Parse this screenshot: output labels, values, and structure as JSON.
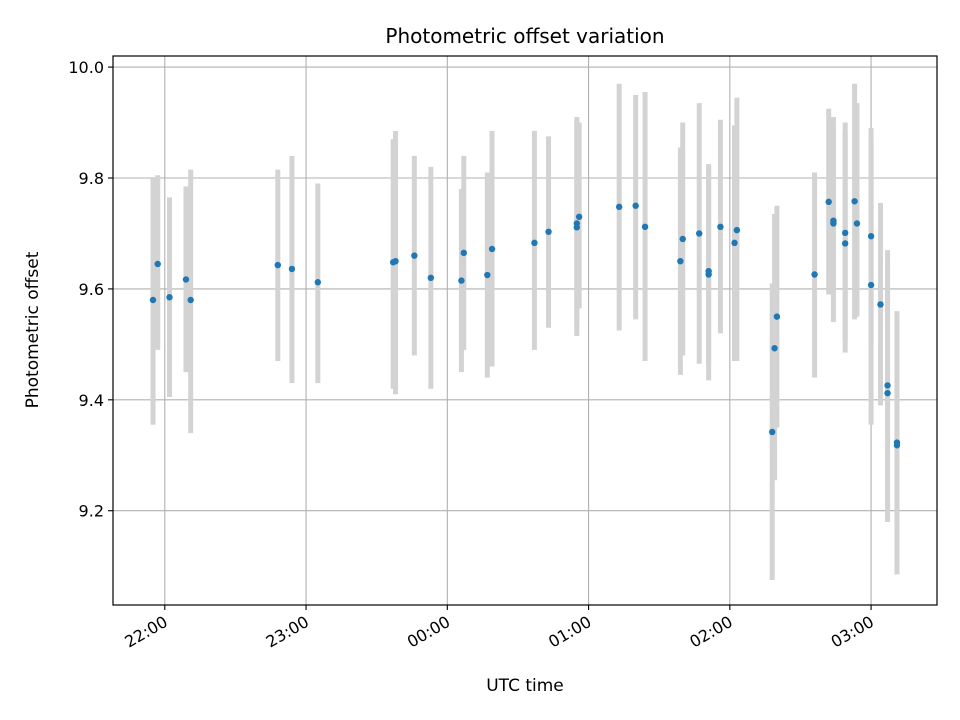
{
  "chart_data": {
    "type": "scatter",
    "title": "Photometric offset variation",
    "xlabel": "UTC time",
    "ylabel": "Photometric offset",
    "x_unit": "UTC time (HH:MM, spanning midnight)",
    "xlim": [
      "21:38",
      "03:28"
    ],
    "ylim": [
      9.03,
      10.02
    ],
    "x_ticks": [
      "22:00",
      "23:00",
      "00:00",
      "01:00",
      "02:00",
      "03:00"
    ],
    "y_ticks": [
      9.2,
      9.4,
      9.6,
      9.8,
      10.0
    ],
    "y_tick_labels": [
      "9.2",
      "9.4",
      "9.6",
      "9.8",
      "10.0"
    ],
    "grid": true,
    "marker_color": "#1f77b4",
    "errorbar_color": "#d3d3d3",
    "series": [
      {
        "x": [
          "21:55",
          "21:57",
          "22:02",
          "22:09",
          "22:11",
          "22:48",
          "22:54",
          "23:05",
          "23:37",
          "23:38",
          "23:46",
          "23:53",
          "00:06",
          "00:07",
          "00:17",
          "00:19",
          "00:37",
          "00:43",
          "00:55",
          "00:55",
          "00:56",
          "01:13",
          "01:20",
          "01:24",
          "01:39",
          "01:40",
          "01:47",
          "01:51",
          "01:51",
          "01:56",
          "02:02",
          "02:03",
          "02:18",
          "02:19",
          "02:20",
          "02:36",
          "02:42",
          "02:44",
          "02:44",
          "02:49",
          "02:49",
          "02:53",
          "02:54",
          "03:00",
          "03:00",
          "03:04",
          "03:07",
          "03:07",
          "03:11",
          "03:11"
        ],
        "y": [
          9.58,
          9.645,
          9.585,
          9.617,
          9.58,
          9.643,
          9.636,
          9.612,
          9.648,
          9.65,
          9.66,
          9.62,
          9.615,
          9.665,
          9.625,
          9.672,
          9.683,
          9.703,
          9.718,
          9.711,
          9.73,
          9.748,
          9.75,
          9.712,
          9.65,
          9.69,
          9.7,
          9.632,
          9.626,
          9.712,
          9.683,
          9.706,
          9.342,
          9.493,
          9.55,
          9.626,
          9.757,
          9.723,
          9.718,
          9.701,
          9.682,
          9.758,
          9.718,
          9.695,
          9.607,
          9.572,
          9.426,
          9.412,
          9.323,
          9.318
        ],
        "err_low": [
          9.355,
          9.49,
          9.405,
          9.45,
          9.34,
          9.47,
          9.43,
          9.43,
          9.42,
          9.41,
          9.48,
          9.42,
          9.45,
          9.49,
          9.44,
          9.46,
          9.49,
          9.53,
          9.53,
          9.515,
          9.565,
          9.525,
          9.545,
          9.47,
          9.445,
          9.48,
          9.465,
          9.465,
          9.435,
          9.52,
          9.47,
          9.47,
          9.075,
          9.255,
          9.35,
          9.44,
          9.59,
          9.54,
          9.59,
          9.505,
          9.485,
          9.545,
          9.55,
          9.5,
          9.355,
          9.39,
          9.18,
          9.18,
          9.09,
          9.085
        ],
        "err_high": [
          9.8,
          9.805,
          9.765,
          9.785,
          9.815,
          9.815,
          9.84,
          9.79,
          9.87,
          9.885,
          9.84,
          9.82,
          9.78,
          9.84,
          9.81,
          9.885,
          9.885,
          9.875,
          9.91,
          9.905,
          9.9,
          9.97,
          9.95,
          9.955,
          9.855,
          9.9,
          9.935,
          9.82,
          9.825,
          9.905,
          9.895,
          9.945,
          9.61,
          9.735,
          9.75,
          9.81,
          9.925,
          9.91,
          9.895,
          9.9,
          9.88,
          9.97,
          9.935,
          9.89,
          9.865,
          9.755,
          9.67,
          9.645,
          9.56,
          9.545
        ]
      }
    ]
  }
}
